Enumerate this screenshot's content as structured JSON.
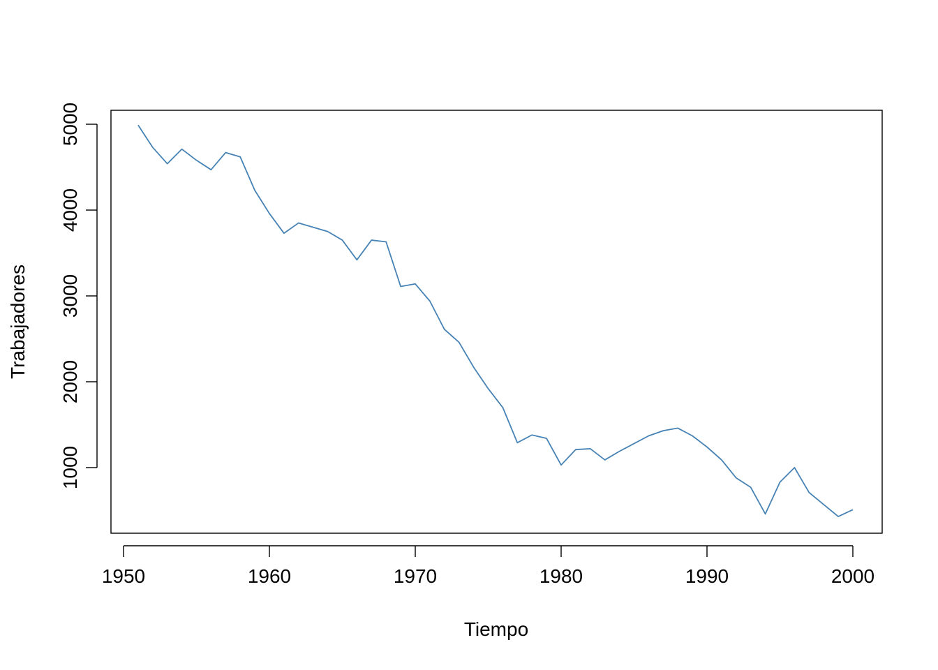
{
  "chart_data": {
    "type": "line",
    "title": "",
    "xlabel": "Tiempo",
    "ylabel": "Trabajadores",
    "xlim": [
      1950,
      2000
    ],
    "ylim": [
      500,
      5000
    ],
    "xticks": [
      1950,
      1960,
      1970,
      1980,
      1990,
      2000
    ],
    "yticks": [
      1000,
      2000,
      3000,
      4000,
      5000
    ],
    "grid": false,
    "line_color": "#4682B4",
    "x": [
      1951,
      1952,
      1953,
      1954,
      1955,
      1956,
      1957,
      1958,
      1959,
      1960,
      1961,
      1962,
      1963,
      1964,
      1965,
      1966,
      1967,
      1968,
      1969,
      1970,
      1971,
      1972,
      1973,
      1974,
      1975,
      1976,
      1977,
      1978,
      1979,
      1980,
      1981,
      1982,
      1983,
      1984,
      1985,
      1986,
      1987,
      1988,
      1989,
      1990,
      1991,
      1992,
      1993,
      1994,
      1995,
      1996,
      1997,
      1998,
      1999,
      2000
    ],
    "series": [
      {
        "values": [
          4990,
          4730,
          4540,
          4710,
          4580,
          4470,
          4670,
          4620,
          4230,
          3960,
          3730,
          3850,
          3800,
          3750,
          3650,
          3420,
          3650,
          3630,
          3110,
          3140,
          2940,
          2610,
          2460,
          2170,
          1920,
          1700,
          1290,
          1380,
          1340,
          1030,
          1210,
          1220,
          1090,
          1190,
          1280,
          1370,
          1430,
          1460,
          1370,
          1240,
          1090,
          880,
          770,
          460,
          830,
          1000,
          710,
          570,
          430,
          510
        ]
      }
    ]
  }
}
